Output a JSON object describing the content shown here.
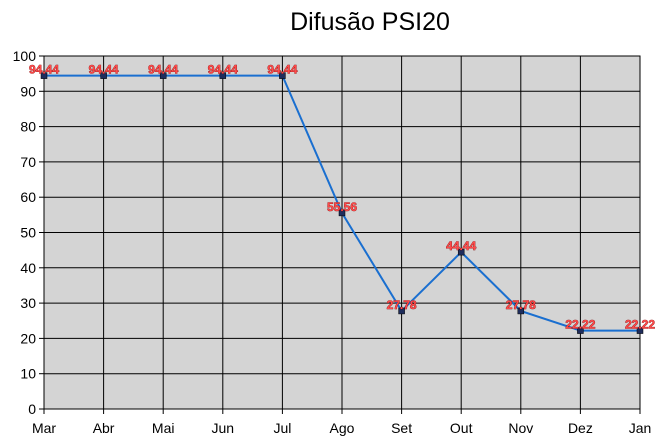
{
  "chart_data": {
    "type": "line",
    "title": "Difusão PSI20",
    "xlabel": "",
    "ylabel": "",
    "categories": [
      "Mar",
      "Abr",
      "Mai",
      "Jun",
      "Jul",
      "Ago",
      "Set",
      "Out",
      "Nov",
      "Dez",
      "Jan"
    ],
    "series": [
      {
        "values": [
          94.44,
          94.44,
          94.44,
          94.44,
          94.44,
          55.56,
          27.78,
          44.44,
          27.78,
          22.22,
          22.22
        ]
      }
    ],
    "data_labels": [
      "94.44",
      "94.44",
      "94.44",
      "94.44",
      "94.44",
      "55.56",
      "27.78",
      "44.44",
      "27.78",
      "22.22",
      "22.22"
    ],
    "ylim": [
      0,
      100
    ],
    "yticks": [
      0,
      10,
      20,
      30,
      40,
      50,
      60,
      70,
      80,
      90,
      100
    ],
    "grid": true,
    "legend": "none",
    "colors": {
      "plot_background": "#d4d4d4",
      "grid": "#000000",
      "line": "#1a6fd0",
      "marker": "#1f2d5c",
      "data_label": "#ff4a4a"
    }
  }
}
